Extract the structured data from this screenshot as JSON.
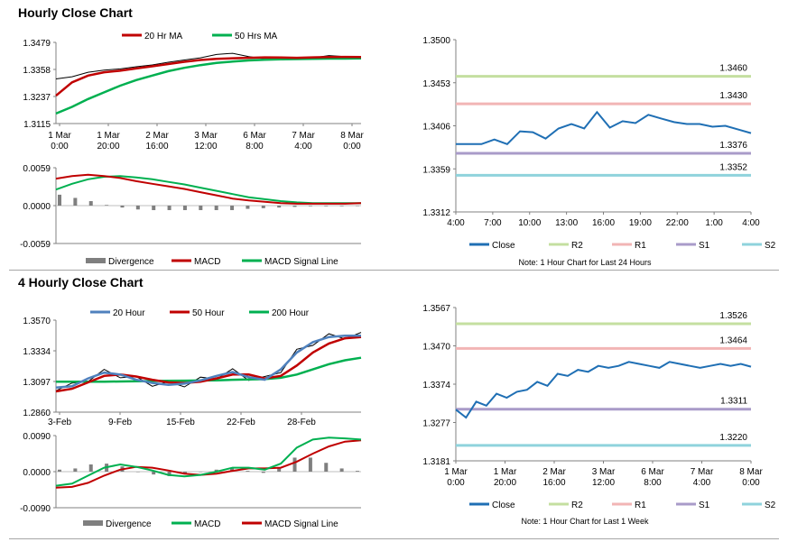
{
  "sections": [
    {
      "title": "Hourly Close Chart"
    },
    {
      "title": "4 Hourly Close Chart"
    }
  ],
  "colors": {
    "ma20": "#c00000",
    "ma50": "#00b050",
    "close": "#1f6fb4",
    "r2": "#c4dfa0",
    "r1": "#f2b5b5",
    "s1": "#a99bc9",
    "s2": "#8fd3dc",
    "line20": "#4f81bd",
    "line200": "#00b050",
    "macd_red": "#c00000",
    "signal_green": "#00b050",
    "divergence": "#7f7f7f"
  },
  "chart_data": [
    {
      "id": "hourly_price",
      "type": "line",
      "x_labels": [
        "1 Mar\n0:00",
        "1 Mar\n20:00",
        "2 Mar\n16:00",
        "3 Mar\n12:00",
        "6 Mar\n8:00",
        "7 Mar\n4:00",
        "8 Mar\n0:00"
      ],
      "y_ticks": [
        "1.3479",
        "1.3358",
        "1.3237",
        "1.3115"
      ],
      "ylim": [
        1.3115,
        1.3479
      ],
      "legend": [
        "20 Hr MA",
        "50 Hrs MA"
      ],
      "series": [
        {
          "name": "20 Hr MA",
          "color": "#c00000",
          "values": [
            1.324,
            1.33,
            1.333,
            1.3345,
            1.3352,
            1.3362,
            1.3372,
            1.3382,
            1.3392,
            1.34,
            1.3405,
            1.3408,
            1.341,
            1.3412,
            1.3411,
            1.341,
            1.3412,
            1.3413,
            1.3414,
            1.3413
          ]
        },
        {
          "name": "50 Hrs MA",
          "color": "#00b050",
          "values": [
            1.316,
            1.319,
            1.3225,
            1.3255,
            1.3285,
            1.331,
            1.333,
            1.335,
            1.3365,
            1.3377,
            1.3387,
            1.3393,
            1.3398,
            1.3401,
            1.3403,
            1.3404,
            1.3405,
            1.3406,
            1.3406,
            1.3407
          ]
        },
        {
          "name": "Close",
          "color": "#000000",
          "values": [
            1.3315,
            1.3325,
            1.3345,
            1.3355,
            1.336,
            1.337,
            1.3378,
            1.339,
            1.34,
            1.341,
            1.3425,
            1.343,
            1.3415,
            1.3405,
            1.34,
            1.3408,
            1.341,
            1.342,
            1.3415,
            1.3412
          ]
        }
      ]
    },
    {
      "id": "hourly_macd",
      "type": "line",
      "y_ticks": [
        "0.0059",
        "0.0000",
        "-0.0059"
      ],
      "ylim": [
        -0.0059,
        0.0059
      ],
      "legend": [
        "Divergence",
        "MACD",
        "MACD Signal Line"
      ],
      "series": [
        {
          "name": "MACD",
          "color": "#c00000",
          "values": [
            0.0042,
            0.0046,
            0.0048,
            0.0046,
            0.0043,
            0.0038,
            0.0034,
            0.003,
            0.0026,
            0.0021,
            0.0016,
            0.0011,
            0.0008,
            0.0006,
            0.0004,
            0.0003,
            0.0003,
            0.0003,
            0.0003,
            0.0004
          ]
        },
        {
          "name": "MACD Signal Line",
          "color": "#00b050",
          "values": [
            0.0025,
            0.0034,
            0.0041,
            0.0045,
            0.0046,
            0.0044,
            0.0041,
            0.0037,
            0.0033,
            0.0028,
            0.0023,
            0.0018,
            0.0013,
            0.001,
            0.0007,
            0.0005,
            0.0004,
            0.0004,
            0.0004,
            0.0004
          ]
        },
        {
          "name": "Divergence",
          "color": "#7f7f7f",
          "values": [
            0.0017,
            0.0012,
            0.0007,
            0.0001,
            -0.0003,
            -0.0006,
            -0.0007,
            -0.0007,
            -0.0007,
            -0.0007,
            -0.0007,
            -0.0007,
            -0.0005,
            -0.0004,
            -0.0003,
            -0.0002,
            -0.0001,
            -0.0001,
            -0.0001,
            0.0
          ]
        }
      ]
    },
    {
      "id": "hourly_pivot",
      "type": "line",
      "x_labels": [
        "4:00",
        "7:00",
        "10:00",
        "13:00",
        "16:00",
        "19:00",
        "22:00",
        "1:00",
        "4:00"
      ],
      "y_ticks": [
        "1.3500",
        "1.3453",
        "1.3406",
        "1.3359",
        "1.3312"
      ],
      "ylim": [
        1.3312,
        1.35
      ],
      "levels": [
        {
          "name": "R2",
          "value": 1.346,
          "label": "1.3460"
        },
        {
          "name": "R1",
          "value": 1.343,
          "label": "1.3430"
        },
        {
          "name": "S1",
          "value": 1.3376,
          "label": "1.3376"
        },
        {
          "name": "S2",
          "value": 1.3352,
          "label": "1.3352"
        }
      ],
      "series": [
        {
          "name": "Close",
          "color": "#1f6fb4",
          "values": [
            1.3386,
            1.3386,
            1.3386,
            1.3391,
            1.3386,
            1.34,
            1.3399,
            1.3392,
            1.3403,
            1.3408,
            1.3403,
            1.3421,
            1.3404,
            1.3411,
            1.3409,
            1.3418,
            1.3414,
            1.341,
            1.3408,
            1.3408,
            1.3405,
            1.3406,
            1.3402,
            1.3398
          ]
        }
      ],
      "legend": [
        "Close",
        "R2",
        "R1",
        "S1",
        "S2"
      ],
      "note": "Note: 1 Hour Chart for Last 24 Hours"
    },
    {
      "id": "four_hourly_price",
      "type": "line",
      "x_labels": [
        "3-Feb",
        "9-Feb",
        "15-Feb",
        "22-Feb",
        "28-Feb"
      ],
      "y_ticks": [
        "1.3570",
        "1.3334",
        "1.3097",
        "1.2860"
      ],
      "ylim": [
        1.286,
        1.357
      ],
      "legend": [
        "20 Hour",
        "50 Hour",
        "200 Hour"
      ],
      "series": [
        {
          "name": "20 Hour",
          "color": "#4f81bd",
          "values": [
            1.305,
            1.306,
            1.312,
            1.3165,
            1.315,
            1.311,
            1.3085,
            1.307,
            1.308,
            1.3105,
            1.314,
            1.317,
            1.313,
            1.311,
            1.319,
            1.332,
            1.34,
            1.344,
            1.345,
            1.345
          ]
        },
        {
          "name": "50 Hour",
          "color": "#c00000",
          "values": [
            1.302,
            1.304,
            1.309,
            1.314,
            1.315,
            1.3135,
            1.311,
            1.309,
            1.3085,
            1.3095,
            1.312,
            1.315,
            1.315,
            1.312,
            1.314,
            1.322,
            1.332,
            1.339,
            1.343,
            1.344
          ]
        },
        {
          "name": "200 Hour",
          "color": "#00b050",
          "values": [
            1.3095,
            1.3095,
            1.3095,
            1.3095,
            1.3097,
            1.3098,
            1.31,
            1.3102,
            1.3103,
            1.3104,
            1.3105,
            1.311,
            1.3112,
            1.3115,
            1.3125,
            1.315,
            1.319,
            1.323,
            1.326,
            1.328
          ]
        }
      ]
    },
    {
      "id": "four_hourly_macd",
      "type": "line",
      "y_ticks": [
        "0.0090",
        "0.0000",
        "-0.0090"
      ],
      "ylim": [
        -0.009,
        0.009
      ],
      "legend": [
        "Divergence",
        "MACD",
        "MACD Signal Line"
      ],
      "series": [
        {
          "name": "MACD",
          "color": "#00b050",
          "values": [
            -0.0035,
            -0.003,
            -0.001,
            0.001,
            0.0018,
            0.0012,
            0.0003,
            -0.0008,
            -0.0012,
            -0.0008,
            0.0,
            0.001,
            0.001,
            0.0005,
            0.002,
            0.006,
            0.008,
            0.0085,
            0.0083,
            0.008
          ]
        },
        {
          "name": "MACD Signal Line",
          "color": "#c00000",
          "values": [
            -0.004,
            -0.0038,
            -0.0028,
            -0.001,
            0.0005,
            0.0012,
            0.001,
            0.0003,
            -0.0005,
            -0.0008,
            -0.0005,
            0.0002,
            0.0008,
            0.0008,
            0.001,
            0.0025,
            0.0045,
            0.0063,
            0.0075,
            0.0078
          ]
        },
        {
          "name": "Divergence",
          "color": "#7f7f7f",
          "values": [
            0.0005,
            0.0008,
            0.0018,
            0.002,
            0.0013,
            0.0,
            -0.0007,
            -0.0011,
            -0.0007,
            0.0,
            0.0005,
            0.0008,
            0.0002,
            -0.0003,
            0.001,
            0.0035,
            0.0035,
            0.0022,
            0.0008,
            0.0002
          ]
        }
      ]
    },
    {
      "id": "four_hourly_pivot",
      "type": "line",
      "x_labels": [
        "1 Mar\n0:00",
        "1 Mar\n20:00",
        "2 Mar\n16:00",
        "3 Mar\n12:00",
        "6 Mar\n8:00",
        "7 Mar\n4:00",
        "8 Mar\n0:00"
      ],
      "y_ticks": [
        "1.3567",
        "1.3470",
        "1.3374",
        "1.3277",
        "1.3181"
      ],
      "ylim": [
        1.3181,
        1.3567
      ],
      "levels": [
        {
          "name": "R2",
          "value": 1.3526,
          "label": "1.3526"
        },
        {
          "name": "R1",
          "value": 1.3464,
          "label": "1.3464"
        },
        {
          "name": "S1",
          "value": 1.3311,
          "label": "1.3311"
        },
        {
          "name": "S2",
          "value": 1.322,
          "label": "1.3220"
        }
      ],
      "series": [
        {
          "name": "Close",
          "color": "#1f6fb4",
          "values": [
            1.331,
            1.329,
            1.333,
            1.332,
            1.335,
            1.334,
            1.3355,
            1.336,
            1.338,
            1.337,
            1.34,
            1.3395,
            1.341,
            1.3405,
            1.342,
            1.3415,
            1.342,
            1.343,
            1.3425,
            1.342,
            1.3415,
            1.343,
            1.3425,
            1.342,
            1.3415,
            1.342,
            1.3425,
            1.342,
            1.3425,
            1.3418
          ]
        }
      ],
      "legend": [
        "Close",
        "R2",
        "R1",
        "S1",
        "S2"
      ],
      "note": "Note: 1 Hour Chart for Last 1 Week"
    }
  ]
}
